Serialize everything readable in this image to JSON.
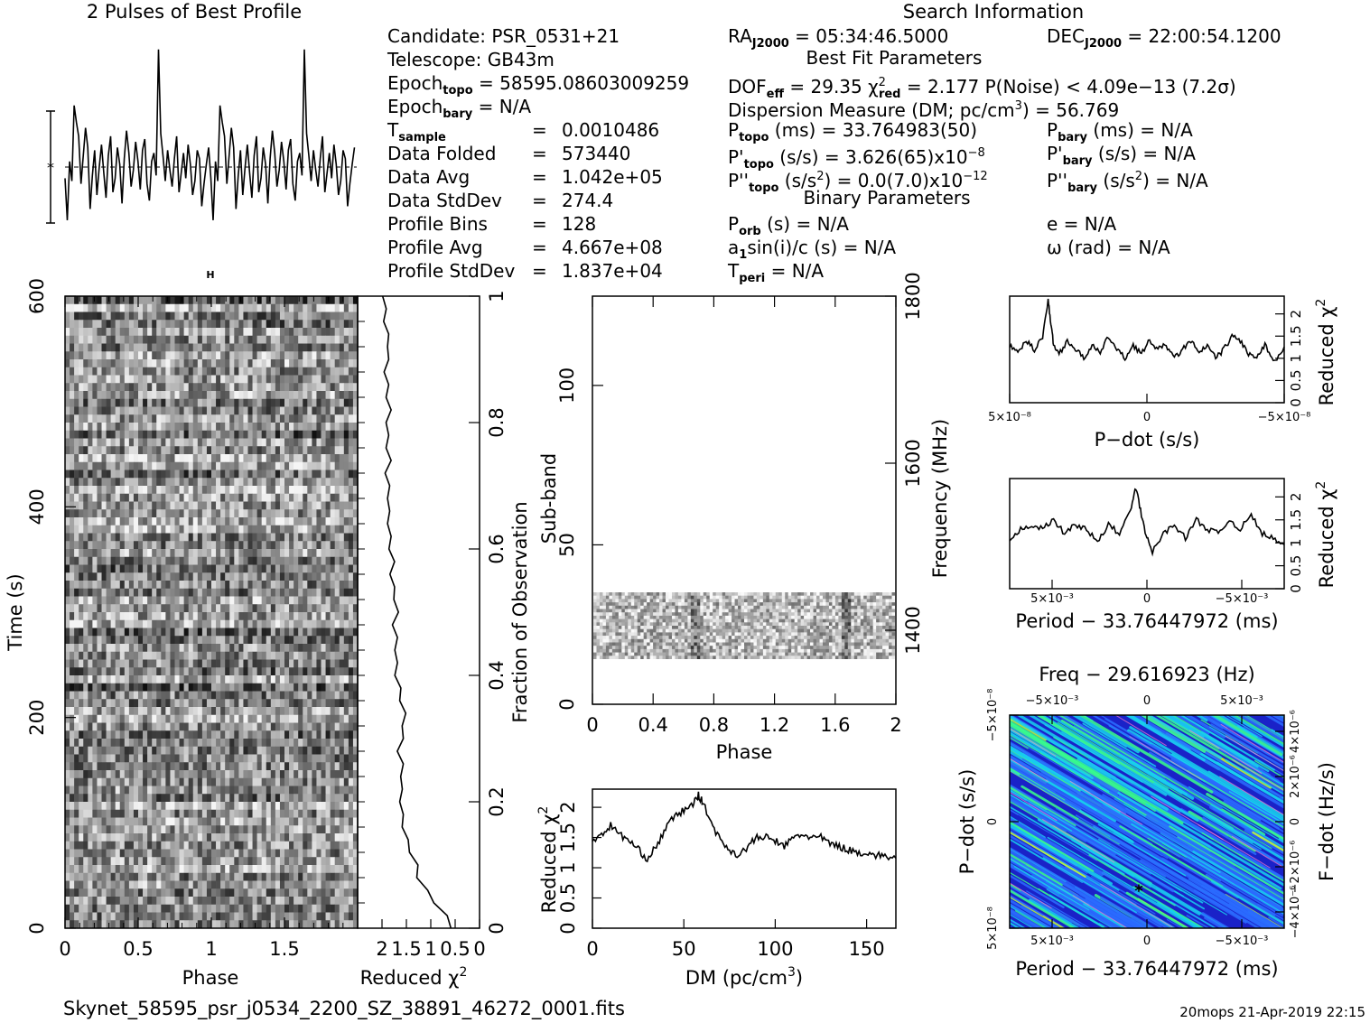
{
  "profile_title": "2 Pulses of Best Profile",
  "search_title": "Search Information",
  "fit_title": "Best Fit Parameters",
  "binary_title": "Binary Parameters",
  "info": {
    "candidate": "Candidate:  PSR_0531+21",
    "telescope": "Telescope:  GB43m",
    "epoch_topo_lbl": "Epoch",
    "epoch_topo_sub": "topo",
    "epoch_topo_val": " = 58595.08603009259",
    "epoch_bary_lbl": "Epoch",
    "epoch_bary_sub": "bary",
    "epoch_bary_val": " = N/A",
    "t_lbl": "T",
    "t_sub": "sample",
    "eq": "=",
    "rows": [
      {
        "label": "Data Folded",
        "value": "573440"
      },
      {
        "label": "Data Avg",
        "value": "1.042e+05"
      },
      {
        "label": "Data StdDev",
        "value": "274.4"
      },
      {
        "label": "Profile Bins",
        "value": "128"
      },
      {
        "label": "Profile Avg",
        "value": "4.667e+08"
      },
      {
        "label": "Profile StdDev",
        "value": "1.837e+04"
      }
    ],
    "t_val": "0.0010486"
  },
  "fit": {
    "ra_lbl": "RA",
    "ra_sub": "J2000",
    "ra_val": " = 05:34:46.5000",
    "dec_lbl": "DEC",
    "dec_sub": "J2000",
    "dec_val": " = 22:00:54.1200",
    "dof_lbl": "DOF",
    "dof_sub": "eff",
    "dof_val": " = 29.35  ",
    "chi_lbl": "χ",
    "chi_sup": "2",
    "chi_sub": "red",
    "chi_val": " = 2.177  ",
    "pnoise": "P(Noise) < 4.09e−13  (7.2σ)",
    "dm_a": "Dispersion Measure (DM; pc/cm",
    "dm_sup": "3",
    "dm_b": ") = 56.769",
    "p_lbl": "P",
    "p_sub": "topo",
    "p_val": " (ms) =  33.764983(50)",
    "pd_lbl": "P'",
    "pd_sub": "topo",
    "pd_val": " (s/s) =  3.626(65)x10",
    "pd_sup": "−8",
    "pdd_lbl": "P''",
    "pdd_sub": "topo",
    "pdd_val": " (s/s",
    "pdd_sup1": "2",
    "pdd_val2": ") = 0.0(7.0)x10",
    "pdd_sup2": "−12",
    "pb_lbl": "P",
    "pb_sub": "bary",
    "pb_val": " (ms) = N/A",
    "pdb_lbl": "P'",
    "pdb_sub": "bary",
    "pdb_val": " (s/s) = N/A",
    "pddb_lbl": "P''",
    "pddb_sub": "bary",
    "pddb_val": " (s/s",
    "pddb_sup": "2",
    "pddb_val2": ") = N/A",
    "porb_lbl": "P",
    "porb_sub": "orb",
    "porb_val": " (s) = N/A",
    "a1_lbl": "a",
    "a1_sub": "1",
    "a1_val": "sin(i)/c (s) = N/A",
    "tperi_lbl": "T",
    "tperi_sub": "peri",
    "tperi_val": " = N/A",
    "e_val": "e = N/A",
    "om_val": "ω (rad) = N/A"
  },
  "footer": {
    "filename": "Skynet_58595_psr_j0534_2200_SZ_38891_46272_0001.fits",
    "stamp": "20mops 21-Apr-2019 22:15"
  },
  "chart_data": [
    {
      "type": "line",
      "name": "profile",
      "x": [
        0,
        0.0156,
        0.0313,
        0.0469,
        0.0625,
        0.0781,
        0.0938,
        0.1094,
        0.125,
        0.1406,
        0.1563,
        0.1719,
        0.1875,
        0.2031,
        0.2188,
        0.2344,
        0.25,
        0.2656,
        0.2813,
        0.2969,
        0.3125,
        0.3281,
        0.3438,
        0.3594,
        0.375,
        0.3906,
        0.4063,
        0.4219,
        0.4375,
        0.4531,
        0.4688,
        0.4844,
        0.5,
        0.5156,
        0.5313,
        0.5469,
        0.5625,
        0.5781,
        0.5938,
        0.6094,
        0.625,
        0.6406,
        0.6563,
        0.6719,
        0.6875,
        0.7031,
        0.7188,
        0.7344,
        0.75,
        0.7656,
        0.7813,
        0.7969,
        0.8125,
        0.8281,
        0.8438,
        0.8594,
        0.875,
        0.8906,
        0.9063,
        0.9219,
        0.9375,
        0.9531,
        0.9688,
        0.9844
      ],
      "values": [
        -0.4,
        -1.9,
        0.2,
        -0.5,
        2.2,
        1.6,
        1.1,
        -0.6,
        0.4,
        1.4,
        0.7,
        -1.5,
        -0.3,
        0.6,
        -1.0,
        0.0,
        0.8,
        -0.2,
        -1.1,
        0.4,
        1.1,
        -0.9,
        -0.4,
        0.7,
        0.1,
        -1.3,
        0.3,
        1.3,
        0.5,
        -0.7,
        -0.1,
        0.9,
        0.2,
        -0.8,
        0.6,
        1.0,
        -0.6,
        -1.2,
        0.2,
        0.5,
        -0.3,
        4.2,
        1.2,
        0.4,
        -0.5,
        0.6,
        -0.1,
        -0.7,
        0.3,
        1.1,
        -0.9,
        -0.2,
        0.5,
        -0.4,
        0.8,
        0.1,
        -1.0,
        -0.5,
        0.6,
        0.3,
        -1.4,
        -0.6,
        0.1,
        0.7
      ],
      "xlim": [
        0,
        2
      ]
    },
    {
      "type": "heatmap",
      "name": "time-phase",
      "xlabel": "Phase",
      "ylabel": "Time (s)",
      "xlim": [
        0,
        2
      ],
      "ylim": [
        0,
        600
      ],
      "xticks": [
        "0",
        "0.5",
        "1",
        "1.5"
      ],
      "yticks": [
        "0",
        "200",
        "400",
        "600"
      ]
    },
    {
      "type": "line",
      "name": "time-chi2",
      "xlabel": "Reduced χ",
      "xlabel_sup": "2",
      "xticks": [
        "2",
        "1.5",
        "1",
        "0.5",
        "0"
      ],
      "y2label": "Fraction of Observation",
      "y2ticks": [
        "0",
        "0.2",
        "0.4",
        "0.6",
        "0.8",
        "1"
      ],
      "x": [
        0.0,
        0.02,
        0.04,
        0.06,
        0.08,
        0.1,
        0.12,
        0.14,
        0.16,
        0.18,
        0.2,
        0.22,
        0.24,
        0.26,
        0.28,
        0.3,
        0.32,
        0.34,
        0.36,
        0.38,
        0.4,
        0.42,
        0.44,
        0.46,
        0.48,
        0.5,
        0.52,
        0.54,
        0.56,
        0.58,
        0.6,
        0.62,
        0.64,
        0.66,
        0.68,
        0.7,
        0.72,
        0.74,
        0.76,
        0.78,
        0.8,
        0.82,
        0.84,
        0.86,
        0.88,
        0.9,
        0.92,
        0.94,
        0.96,
        0.98,
        1.0
      ],
      "values": [
        0.55,
        0.7,
        0.9,
        1.1,
        1.25,
        1.3,
        1.4,
        1.5,
        1.55,
        1.6,
        1.6,
        1.62,
        1.58,
        1.6,
        1.65,
        1.6,
        1.55,
        1.55,
        1.6,
        1.65,
        1.7,
        1.72,
        1.7,
        1.72,
        1.75,
        1.7,
        1.72,
        1.78,
        1.8,
        1.78,
        1.82,
        1.85,
        1.85,
        1.88,
        1.85,
        1.88,
        1.9,
        1.85,
        1.88,
        1.9,
        1.88,
        1.85,
        1.88,
        1.9,
        1.92,
        1.9,
        1.85,
        1.9,
        1.93,
        1.95,
        1.95
      ],
      "xlim": [
        2.5,
        0
      ]
    },
    {
      "type": "heatmap",
      "name": "subband-phase",
      "xlabel": "Phase",
      "ylabel": "Sub-band",
      "y2label": "Frequency (MHz)",
      "xlim": [
        0,
        2
      ],
      "ylim": [
        0,
        128
      ],
      "xticks": [
        "0",
        "0.4",
        "0.8",
        "1.2",
        "1.6",
        "2"
      ],
      "yticks": [
        "0",
        "50",
        "100"
      ],
      "y2ticks": [
        "1400",
        "1600",
        "1800"
      ]
    },
    {
      "type": "line",
      "name": "dm-chi2",
      "xlabel": "DM (pc/cm",
      "xlabel_sup": "3",
      "xlabel_end": ")",
      "ylabel": "Reduced χ",
      "ylabel_sup": "2",
      "xlim": [
        0,
        166
      ],
      "ylim": [
        0,
        2.3
      ],
      "xticks": [
        "0",
        "50",
        "100",
        "150"
      ],
      "yticks": [
        "0",
        "0.5",
        "1",
        "1.5",
        "2"
      ],
      "x": [
        0,
        5,
        10,
        15,
        20,
        25,
        30,
        35,
        40,
        45,
        50,
        55,
        58,
        60,
        65,
        70,
        75,
        80,
        85,
        90,
        95,
        100,
        105,
        110,
        115,
        120,
        125,
        130,
        135,
        140,
        145,
        150,
        155,
        160,
        166
      ],
      "values": [
        1.45,
        1.55,
        1.7,
        1.55,
        1.45,
        1.3,
        1.15,
        1.35,
        1.65,
        1.85,
        1.95,
        2.05,
        2.2,
        2.1,
        1.75,
        1.45,
        1.3,
        1.2,
        1.35,
        1.5,
        1.5,
        1.45,
        1.35,
        1.5,
        1.55,
        1.5,
        1.5,
        1.4,
        1.35,
        1.3,
        1.25,
        1.25,
        1.2,
        1.2,
        1.15
      ]
    },
    {
      "type": "line",
      "name": "pdot-chi2",
      "xlabel": "P−dot (s/s)",
      "ylabel": "Reduced χ",
      "ylabel_sup": "2",
      "xticks": [
        "5×10⁻⁸",
        "0",
        "−5×10⁻⁸"
      ],
      "yticks": [
        "0",
        "0.5",
        "1",
        "1.5",
        "2"
      ],
      "ylim": [
        0,
        2.4
      ],
      "x": [
        0,
        0.03,
        0.06,
        0.09,
        0.12,
        0.14,
        0.15,
        0.16,
        0.18,
        0.21,
        0.24,
        0.27,
        0.3,
        0.33,
        0.36,
        0.39,
        0.42,
        0.45,
        0.48,
        0.51,
        0.54,
        0.57,
        0.6,
        0.63,
        0.66,
        0.69,
        0.72,
        0.75,
        0.78,
        0.81,
        0.84,
        0.87,
        0.9,
        0.93,
        0.96,
        1.0
      ],
      "values": [
        1.3,
        1.1,
        1.4,
        1.2,
        1.5,
        2.3,
        1.8,
        1.3,
        1.1,
        1.4,
        1.2,
        1.0,
        1.3,
        1.1,
        1.5,
        1.2,
        1.0,
        1.3,
        1.1,
        1.4,
        1.2,
        1.3,
        1.0,
        1.2,
        1.4,
        1.1,
        1.3,
        1.0,
        1.2,
        1.5,
        1.4,
        1.1,
        1.0,
        1.3,
        0.9,
        1.2
      ]
    },
    {
      "type": "line",
      "name": "period-chi2",
      "xlabel": "Period − 33.76447972 (ms)",
      "ylabel": "Reduced χ",
      "ylabel_sup": "2",
      "xticks": [
        "5×10⁻³",
        "0",
        "−5×10⁻³"
      ],
      "yticks": [
        "0",
        "0.5",
        "1",
        "1.5",
        "2"
      ],
      "ylim": [
        0,
        2.4
      ],
      "x": [
        0,
        0.04,
        0.08,
        0.12,
        0.16,
        0.2,
        0.24,
        0.28,
        0.32,
        0.36,
        0.4,
        0.44,
        0.46,
        0.48,
        0.5,
        0.52,
        0.56,
        0.6,
        0.64,
        0.68,
        0.72,
        0.76,
        0.8,
        0.84,
        0.88,
        0.92,
        0.96,
        1.0
      ],
      "values": [
        1.0,
        1.3,
        1.4,
        1.3,
        1.5,
        1.2,
        1.4,
        1.3,
        1.0,
        1.4,
        1.2,
        1.7,
        2.2,
        1.6,
        1.1,
        0.8,
        1.2,
        1.4,
        1.1,
        1.5,
        1.3,
        1.2,
        1.5,
        1.3,
        1.6,
        1.2,
        1.1,
        0.9
      ]
    },
    {
      "type": "heatmap",
      "name": "period-pdot",
      "title": "Freq − 29.616923 (Hz)",
      "xlabel": "Period − 33.76447972 (ms)",
      "ylabel": "P−dot (s/s)",
      "y2label": "F−dot (Hz/s)",
      "xticks": [
        "5×10⁻³",
        "0",
        "−5×10⁻³"
      ],
      "x2ticks": [
        "−5×10⁻³",
        "0",
        "5×10⁻³"
      ],
      "yticks": [
        "5×10⁻⁸",
        "0",
        "−5×10⁻⁸"
      ],
      "y2ticks": [
        "−4×10⁻⁶",
        "−2×10⁻⁶",
        "0",
        "2×10⁻⁶",
        "4×10⁻⁶"
      ],
      "colors": [
        "#1a22c8",
        "#2b6bff",
        "#18d0ee",
        "#39ff8a",
        "#c7ff2a"
      ],
      "best": {
        "x": 0.47,
        "y": 0.82
      }
    }
  ]
}
